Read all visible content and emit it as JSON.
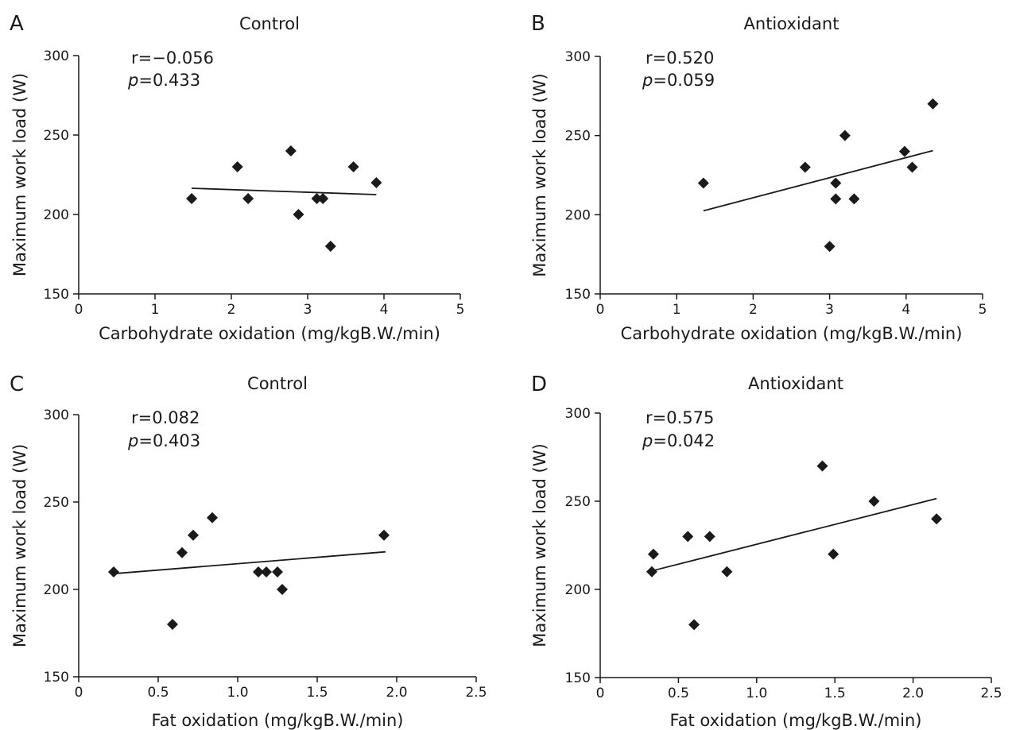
{
  "figure": {
    "panels": [
      {
        "letter": "A",
        "title": "Control",
        "r_text": "r=−0.056",
        "p_symbol": "p",
        "p_value": "=0.433"
      },
      {
        "letter": "B",
        "title": "Antioxidant",
        "r_text": "r=0.520",
        "p_symbol": "p",
        "p_value": "=0.059"
      },
      {
        "letter": "C",
        "title": "Control",
        "r_text": "r=0.082",
        "p_symbol": "p",
        "p_value": "=0.403"
      },
      {
        "letter": "D",
        "title": "Antioxidant",
        "r_text": "r=0.575",
        "p_symbol": "p",
        "p_value": "=0.042"
      }
    ]
  },
  "chart_data": [
    {
      "type": "scatter",
      "panel": "A",
      "title": "Control",
      "xlabel": "Carbohydrate oxidation (mg/kgB.W./min)",
      "ylabel": "Maximum work load (W)",
      "xlim": [
        0,
        5
      ],
      "ylim": [
        150,
        300
      ],
      "xticks": [
        "0",
        "1",
        "2",
        "3",
        "4",
        "5"
      ],
      "yticks": [
        "150",
        "200",
        "250",
        "300"
      ],
      "marker": "diamond",
      "marker_color": "#1a1a1a",
      "points": [
        {
          "x": 1.48,
          "y": 210
        },
        {
          "x": 2.08,
          "y": 230
        },
        {
          "x": 2.22,
          "y": 210
        },
        {
          "x": 2.78,
          "y": 240
        },
        {
          "x": 2.88,
          "y": 200
        },
        {
          "x": 3.12,
          "y": 210
        },
        {
          "x": 3.2,
          "y": 210
        },
        {
          "x": 3.3,
          "y": 180
        },
        {
          "x": 3.6,
          "y": 230
        },
        {
          "x": 3.9,
          "y": 220
        }
      ],
      "trendline": {
        "x": [
          1.48,
          3.9
        ],
        "y": [
          216.5,
          212.5
        ]
      },
      "annotations": {
        "r": "r=−0.056",
        "p": "p=0.433"
      }
    },
    {
      "type": "scatter",
      "panel": "B",
      "title": "Antioxidant",
      "xlabel": "Carbohydrate oxidation (mg/kgB.W./min)",
      "ylabel": "Maximum work load (W)",
      "xlim": [
        0,
        5
      ],
      "ylim": [
        150,
        300
      ],
      "xticks": [
        "0",
        "1",
        "2",
        "3",
        "4",
        "5"
      ],
      "yticks": [
        "150",
        "200",
        "250",
        "300"
      ],
      "marker": "diamond",
      "marker_color": "#1a1a1a",
      "points": [
        {
          "x": 1.35,
          "y": 220
        },
        {
          "x": 2.68,
          "y": 230
        },
        {
          "x": 3.0,
          "y": 180
        },
        {
          "x": 3.08,
          "y": 220
        },
        {
          "x": 3.08,
          "y": 210
        },
        {
          "x": 3.2,
          "y": 250
        },
        {
          "x": 3.32,
          "y": 210
        },
        {
          "x": 3.98,
          "y": 240
        },
        {
          "x": 4.08,
          "y": 230
        },
        {
          "x": 4.35,
          "y": 270
        }
      ],
      "trendline": {
        "x": [
          1.35,
          4.35
        ],
        "y": [
          202.5,
          240.5
        ]
      },
      "annotations": {
        "r": "r=0.520",
        "p": "p=0.059"
      }
    },
    {
      "type": "scatter",
      "panel": "C",
      "title": "Control",
      "xlabel": "Fat oxidation (mg/kgB.W./min)",
      "ylabel": "Maximum work load (W)",
      "xlim": [
        0,
        2.5
      ],
      "ylim": [
        150,
        300
      ],
      "xticks": [
        "0",
        "0.5",
        "1.0",
        "1.5",
        "2.0",
        "2.5"
      ],
      "yticks": [
        "150",
        "200",
        "250",
        "300"
      ],
      "marker": "diamond",
      "marker_color": "#1a1a1a",
      "points": [
        {
          "x": 0.22,
          "y": 210
        },
        {
          "x": 0.59,
          "y": 180
        },
        {
          "x": 0.65,
          "y": 221
        },
        {
          "x": 0.72,
          "y": 231
        },
        {
          "x": 0.84,
          "y": 241
        },
        {
          "x": 1.13,
          "y": 210
        },
        {
          "x": 1.18,
          "y": 210
        },
        {
          "x": 1.25,
          "y": 210
        },
        {
          "x": 1.28,
          "y": 200
        },
        {
          "x": 1.92,
          "y": 231
        }
      ],
      "trendline": {
        "x": [
          0.22,
          1.93
        ],
        "y": [
          209,
          221.5
        ]
      },
      "annotations": {
        "r": "r=0.082",
        "p": "p=0.403"
      }
    },
    {
      "type": "scatter",
      "panel": "D",
      "title": "Antioxidant",
      "xlabel": "Fat oxidation (mg/kgB.W./min)",
      "ylabel": "Maximum work load (W)",
      "xlim": [
        0,
        2.5
      ],
      "ylim": [
        150,
        300
      ],
      "xticks": [
        "0",
        "0.5",
        "1.0",
        "1.5",
        "2.0",
        "2.5"
      ],
      "yticks": [
        "150",
        "200",
        "250",
        "300"
      ],
      "marker": "diamond",
      "marker_color": "#1a1a1a",
      "points": [
        {
          "x": 0.33,
          "y": 210
        },
        {
          "x": 0.34,
          "y": 220
        },
        {
          "x": 0.56,
          "y": 230
        },
        {
          "x": 0.6,
          "y": 180
        },
        {
          "x": 0.7,
          "y": 230
        },
        {
          "x": 0.81,
          "y": 210
        },
        {
          "x": 1.42,
          "y": 270
        },
        {
          "x": 1.49,
          "y": 220
        },
        {
          "x": 1.75,
          "y": 250
        },
        {
          "x": 2.15,
          "y": 240
        }
      ],
      "trendline": {
        "x": [
          0.33,
          2.15
        ],
        "y": [
          210.5,
          251.5
        ]
      },
      "annotations": {
        "r": "r=0.575",
        "p": "p=0.042"
      }
    }
  ]
}
